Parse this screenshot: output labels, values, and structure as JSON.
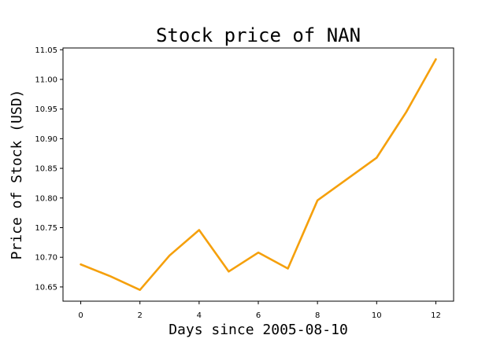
{
  "chart_data": {
    "type": "line",
    "title": "Stock price of NAN",
    "xlabel": "Days since 2005-08-10",
    "ylabel": "Price of Stock (USD)",
    "x": [
      0,
      1,
      2,
      3,
      4,
      5,
      6,
      7,
      8,
      9,
      10,
      11,
      12
    ],
    "series": [
      {
        "values": [
          10.688,
          10.668,
          10.645,
          10.703,
          10.746,
          10.676,
          10.708,
          10.681,
          10.796,
          10.832,
          10.868,
          10.945,
          11.034
        ],
        "color": "#f5a00c"
      }
    ],
    "xlim": [
      -0.6,
      12.6
    ],
    "ylim": [
      10.626,
      11.053
    ],
    "xticks": [
      "0",
      "2",
      "4",
      "6",
      "8",
      "10",
      "12"
    ],
    "yticks": [
      "10.65",
      "10.70",
      "10.75",
      "10.80",
      "10.85",
      "10.90",
      "10.95",
      "11.00",
      "11.05"
    ],
    "grid": false
  }
}
